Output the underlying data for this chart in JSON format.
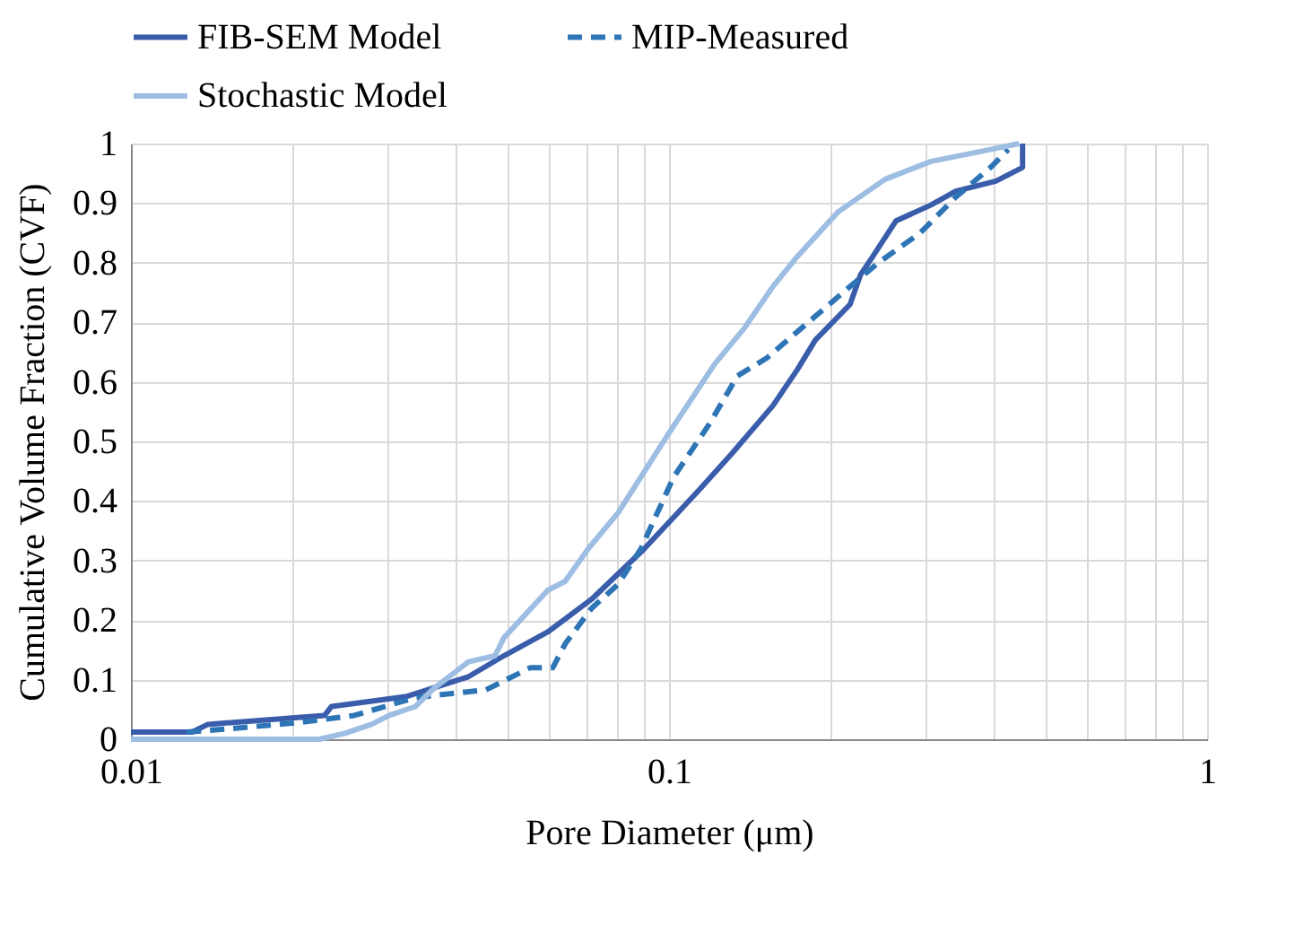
{
  "chart_data": {
    "type": "line",
    "xlabel": "Pore Diameter (μm)",
    "ylabel": "Cumulative  Volume  Fraction (CVF)",
    "log": "x",
    "grid": true,
    "legend": "top",
    "line_style": "solid",
    "xlim": [
      0.01,
      1
    ],
    "ylim": [
      0,
      1
    ],
    "xticks": [
      0.01,
      {
        "value": 0.02,
        "label": null
      },
      {
        "value": 0.03,
        "label": null
      },
      {
        "value": 0.04,
        "label": null
      },
      {
        "value": 0.05,
        "label": null
      },
      {
        "value": 0.06,
        "label": null
      },
      {
        "value": 0.07,
        "label": null
      },
      {
        "value": 0.08,
        "label": null
      },
      {
        "value": 0.09,
        "label": null
      },
      0.1,
      {
        "value": 0.2,
        "label": null
      },
      {
        "value": 0.3,
        "label": null
      },
      {
        "value": 0.4,
        "label": null
      },
      {
        "value": 0.5,
        "label": null
      },
      {
        "value": 0.6,
        "label": null
      },
      {
        "value": 0.7,
        "label": null
      },
      {
        "value": 0.8,
        "label": null
      },
      {
        "value": 0.9,
        "label": null
      },
      1
    ],
    "yticks": [
      0,
      0.1,
      0.2,
      0.3,
      0.4,
      0.5,
      0.6,
      0.7,
      0.8,
      0.9,
      1
    ],
    "series": [
      {
        "name": "FIB-SEM Model",
        "color": "#3a5dab",
        "x": [
          0.01,
          0.013,
          0.0139,
          0.0229,
          0.0236,
          0.0326,
          0.0424,
          0.0493,
          0.0595,
          0.0718,
          0.09,
          0.1128,
          0.131,
          0.156,
          0.173,
          0.187,
          0.217,
          0.227,
          0.239,
          0.264,
          0.307,
          0.341,
          0.405,
          0.454,
          0.454
        ],
        "values": [
          0.012,
          0.012,
          0.025,
          0.04,
          0.055,
          0.072,
          0.105,
          0.14,
          0.18,
          0.235,
          0.32,
          0.415,
          0.48,
          0.56,
          0.62,
          0.67,
          0.73,
          0.78,
          0.81,
          0.87,
          0.897,
          0.92,
          0.937,
          0.96,
          1
        ]
      },
      {
        "name": "MIP-Measured",
        "color": "#2e75b6",
        "line_style": "dashed",
        "x": [
          0.0127,
          0.0154,
          0.02,
          0.026,
          0.0338,
          0.0457,
          0.0552,
          0.0608,
          0.0641,
          0.0718,
          0.0804,
          0.0887,
          0.102,
          0.119,
          0.134,
          0.152,
          0.187,
          0.217,
          0.245,
          0.293,
          0.341,
          0.396,
          0.427
        ],
        "values": [
          0.012,
          0.018,
          0.027,
          0.04,
          0.07,
          0.083,
          0.12,
          0.12,
          0.16,
          0.22,
          0.26,
          0.32,
          0.44,
          0.53,
          0.61,
          0.64,
          0.71,
          0.76,
          0.8,
          0.85,
          0.91,
          0.96,
          0.99
        ]
      },
      {
        "name": "Stochastic Model",
        "color": "#9dbde3",
        "x": [
          0.01,
          0.0224,
          0.025,
          0.028,
          0.0302,
          0.0338,
          0.0365,
          0.0424,
          0.0475,
          0.0493,
          0.0595,
          0.0641,
          0.0708,
          0.0804,
          0.0993,
          0.1216,
          0.138,
          0.156,
          0.173,
          0.206,
          0.252,
          0.307,
          0.396,
          0.447
        ],
        "values": [
          0,
          0,
          0.01,
          0.025,
          0.04,
          0.055,
          0.085,
          0.13,
          0.14,
          0.17,
          0.25,
          0.265,
          0.32,
          0.38,
          0.51,
          0.63,
          0.69,
          0.76,
          0.81,
          0.885,
          0.94,
          0.97,
          0.99,
          1
        ]
      }
    ]
  }
}
